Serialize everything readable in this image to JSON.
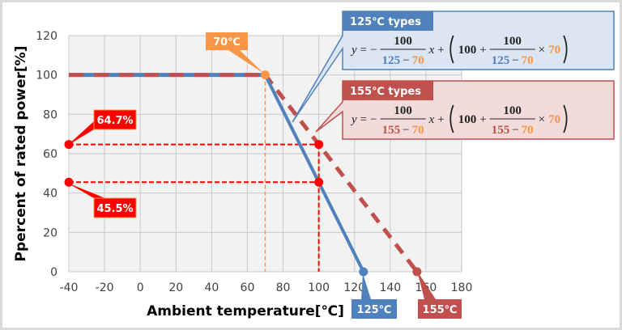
{
  "chart_data": {
    "type": "line",
    "xlabel": "Ambient temperature[℃]",
    "ylabel": "Ppercent of rated power[%]",
    "xlim": [
      -40,
      180
    ],
    "ylim": [
      0,
      120
    ],
    "xticks": [
      "-40",
      "-20",
      "0",
      "20",
      "40",
      "60",
      "80",
      "100",
      "120",
      "140",
      "160",
      "180"
    ],
    "yticks": [
      "0",
      "20",
      "40",
      "60",
      "80",
      "100",
      "120"
    ],
    "grid": true,
    "series": [
      {
        "name": "125℃ types",
        "style": "solid",
        "color": "#4f81bd",
        "x": [
          -40,
          70,
          125
        ],
        "y": [
          100,
          100,
          0
        ]
      },
      {
        "name": "155℃ types",
        "style": "dashed",
        "color": "#c0504d",
        "x": [
          -40,
          70,
          155
        ],
        "y": [
          100,
          100,
          0
        ]
      }
    ],
    "guides": {
      "x_at": 100,
      "values": [
        64.7,
        45.5
      ],
      "color": "#ff0000",
      "knee_x": 70,
      "knee_color": "#f79646"
    },
    "annotations": {
      "knee": "70℃",
      "v155": "64.7%",
      "v125": "45.5%",
      "end125": "125℃",
      "end155": "155℃"
    },
    "equations": {
      "e125": {
        "title": "125℃ types",
        "y": "y",
        "eq": "=",
        "minus": "−",
        "num": "100",
        "t": "125",
        "knee": "70",
        "x": "x",
        "plus": "+",
        "c": "100",
        "times": "×"
      },
      "e155": {
        "title": "155℃ types",
        "y": "y",
        "eq": "=",
        "minus": "−",
        "num": "100",
        "t": "155",
        "knee": "70",
        "x": "x",
        "plus": "+",
        "c": "100",
        "times": "×"
      }
    },
    "colors": {
      "blue": "#4f81bd",
      "red": "#c0504d",
      "orange": "#f79646",
      "plot_bg": "#f2f2f2",
      "grid": "#c8c8c8"
    }
  }
}
